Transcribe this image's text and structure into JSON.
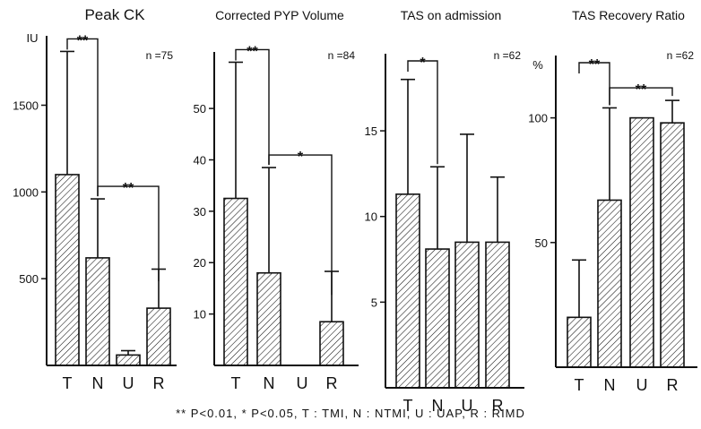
{
  "caption": "** P<0.01, * P<0.05, T : TMI, N : NTMI, U : UAP, R : RIMD",
  "colors": {
    "ink": "#111111",
    "hatch": "#111111",
    "background": "#ffffff"
  },
  "chart_data": [
    {
      "type": "bar",
      "title": "Peak CK",
      "ylabel": "IU",
      "n_label": "n =75",
      "categories": [
        "T",
        "N",
        "U",
        "R"
      ],
      "values": [
        1100,
        620,
        60,
        330
      ],
      "error_upper": [
        1810,
        960,
        85,
        555
      ],
      "ylim": [
        0,
        1900
      ],
      "yticks": [
        500,
        1000,
        1500
      ],
      "significance": [
        {
          "from": 0,
          "to": 1,
          "label": "**"
        },
        {
          "from": 1,
          "to": 3,
          "label": "**"
        }
      ]
    },
    {
      "type": "bar",
      "title": "Corrected PYP Volume",
      "ylabel": "",
      "n_label": "n =84",
      "categories": [
        "T",
        "N",
        "U",
        "R"
      ],
      "values": [
        32.5,
        18,
        null,
        8.5
      ],
      "error_upper": [
        59,
        38.5,
        null,
        18.3
      ],
      "ylim": [
        0,
        61
      ],
      "yticks": [
        10,
        20,
        30,
        40,
        50
      ],
      "significance": [
        {
          "from": 0,
          "to": 1,
          "label": "**"
        },
        {
          "from": 1,
          "to": 3,
          "label": "*"
        }
      ]
    },
    {
      "type": "bar",
      "title": "TAS on admission",
      "ylabel": "",
      "n_label": "n =62",
      "categories": [
        "T",
        "N",
        "U",
        "R"
      ],
      "values": [
        11.3,
        8.1,
        8.5,
        8.5
      ],
      "error_upper": [
        18,
        12.9,
        14.8,
        12.3
      ],
      "ylim": [
        0,
        19.5
      ],
      "yticks": [
        5,
        10,
        15
      ],
      "significance": [
        {
          "from": 0,
          "to": 1,
          "label": "*"
        }
      ]
    },
    {
      "type": "bar",
      "title": "TAS Recovery Ratio",
      "ylabel": "%",
      "n_label": "n =62",
      "categories": [
        "T",
        "N",
        "U",
        "R"
      ],
      "values": [
        20,
        67,
        100,
        98
      ],
      "error_upper": [
        43,
        104,
        100,
        107
      ],
      "ylim": [
        0,
        125
      ],
      "yticks": [
        50,
        100
      ],
      "significance": [
        {
          "from": 0,
          "to": 1,
          "label": "**"
        },
        {
          "from": 1,
          "to": 3,
          "label": "**"
        }
      ]
    }
  ]
}
